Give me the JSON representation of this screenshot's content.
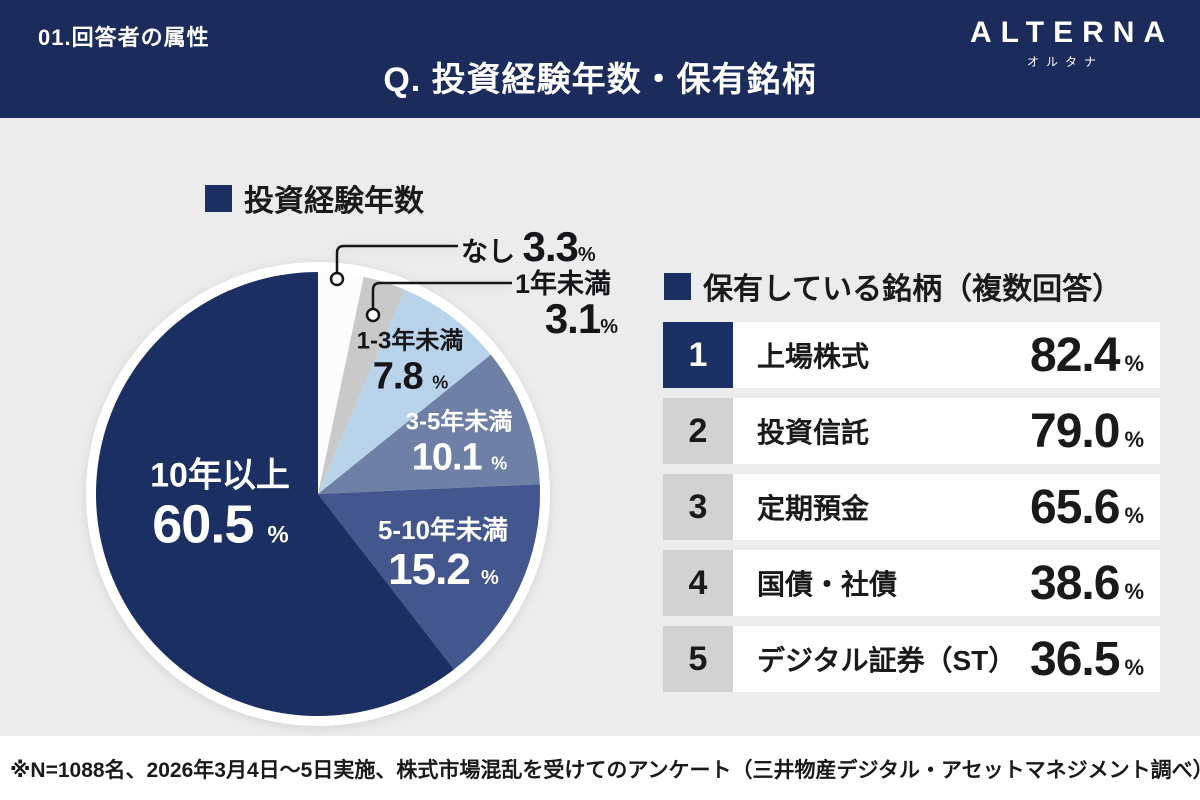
{
  "header": {
    "section_label": "01.回答者の属性",
    "title": "Q. 投資経験年数・保有銘柄",
    "logo": {
      "wordmark": "ALTERNA",
      "subtext": "オルタナ"
    }
  },
  "pie_section": {
    "heading": "投資経験年数"
  },
  "holdings_section": {
    "heading": "保有している銘柄（複数回答）",
    "rows": [
      {
        "rank": "1",
        "label": "上場株式",
        "value": "82.4",
        "unit": "%"
      },
      {
        "rank": "2",
        "label": "投資信託",
        "value": "79.0",
        "unit": "%"
      },
      {
        "rank": "3",
        "label": "定期預金",
        "value": "65.6",
        "unit": "%"
      },
      {
        "rank": "4",
        "label": "国債・社債",
        "value": "38.6",
        "unit": "%"
      },
      {
        "rank": "5",
        "label": "デジタル証券（ST）",
        "value": "36.5",
        "unit": "%"
      }
    ]
  },
  "footer": {
    "note": "※N=1088名、2026年3月4日〜5日実施、株式市場混乱を受けてのアンケート（三井物産デジタル・アセットマネジメント調べ）"
  },
  "chart_data": {
    "type": "pie",
    "title": "投資経験年数",
    "unit": "%",
    "start_angle": "12-oclock-clockwise",
    "segments": [
      {
        "label": "なし",
        "value": 3.3,
        "color": "#fcfcfc",
        "label_placement": "callout"
      },
      {
        "label": "1年未満",
        "value": 3.1,
        "color": "#c9c9c9",
        "label_placement": "callout"
      },
      {
        "label": "1-3年未満",
        "value": 7.8,
        "color": "#b9d4ea",
        "label_placement": "inside-dark-text"
      },
      {
        "label": "3-5年未満",
        "value": 10.1,
        "color": "#6e80a6",
        "label_placement": "inside-white-text"
      },
      {
        "label": "5-10年未満",
        "value": 15.2,
        "color": "#44568e",
        "label_placement": "inside-white-text"
      },
      {
        "label": "10年以上",
        "value": 60.5,
        "color": "#1b2f62",
        "label_placement": "inside-white-text"
      }
    ]
  },
  "colors": {
    "header_bg": "#1b2b5c",
    "page_bg": "#ececec",
    "footer_bg": "#ffffff",
    "accent_navy": "#1b2f62",
    "rank_cell_gray": "#d2d2d2"
  }
}
